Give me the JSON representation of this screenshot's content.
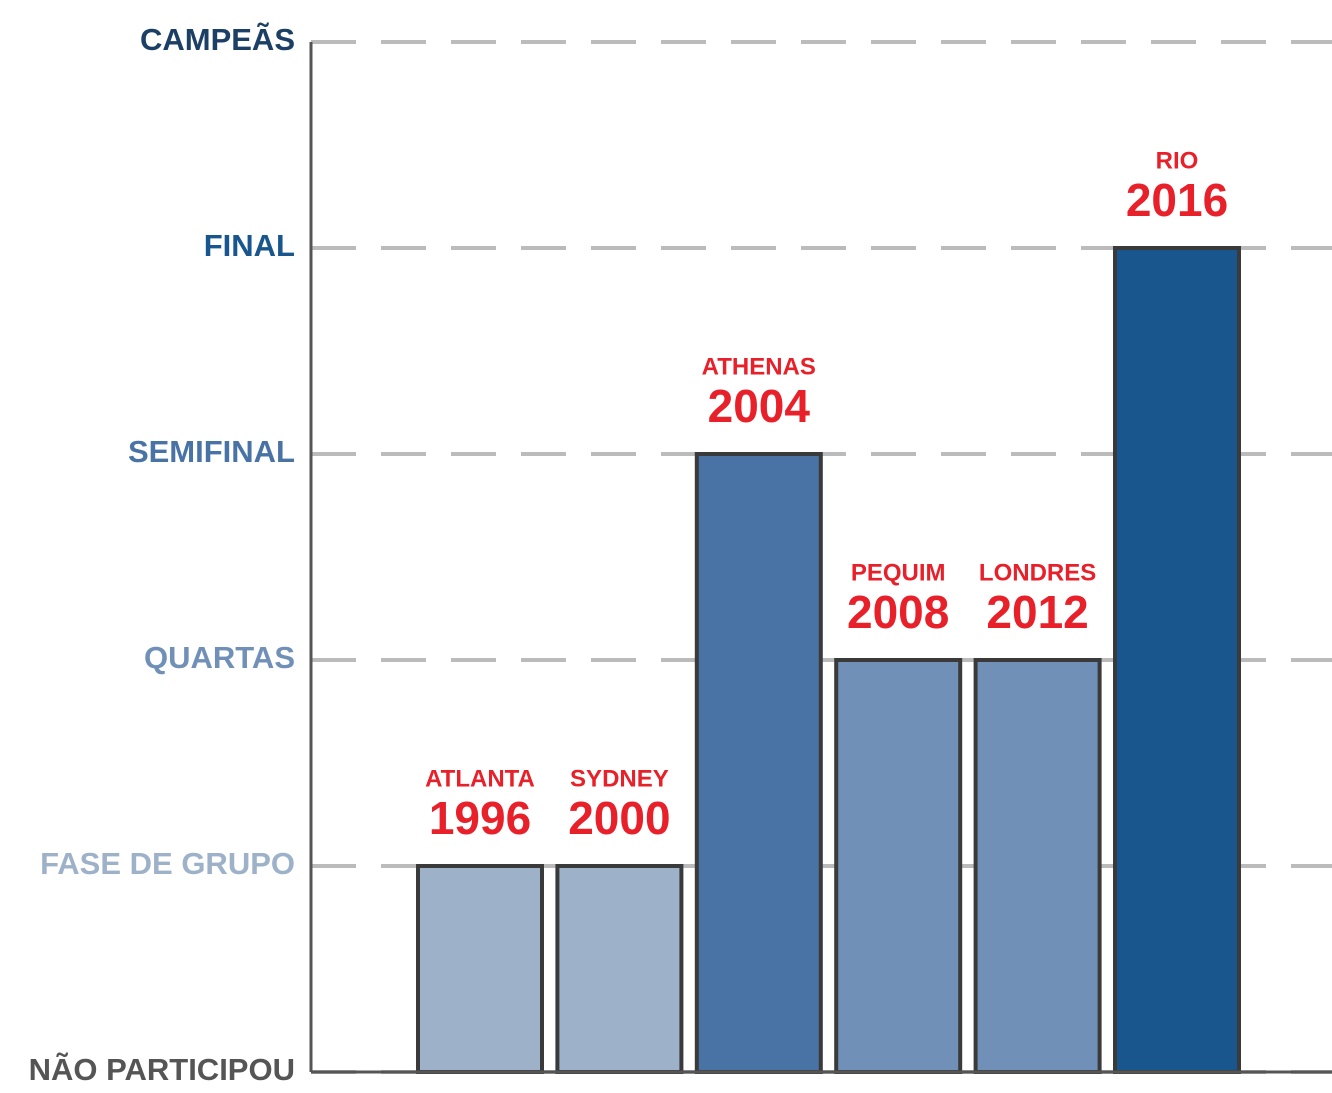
{
  "chart_data": {
    "type": "bar",
    "categories": [
      "1996",
      "2000",
      "2004",
      "2008",
      "2012",
      "2016"
    ],
    "category_names": [
      "ATLANTA",
      "SYDNEY",
      "ATHENAS",
      "PEQUIM",
      "LONDRES",
      "RIO"
    ],
    "values": [
      1,
      1,
      3,
      2,
      2,
      4
    ],
    "colors": [
      "#9db1c8",
      "#9db1c8",
      "#4a73a5",
      "#7090b8",
      "#7090b8",
      "#1a568e"
    ],
    "ylim": [
      0,
      5
    ],
    "yticks": [
      {
        "value": 0,
        "label": "NÃO PARTICIPOU"
      },
      {
        "value": 1,
        "label": "FASE DE GRUPO"
      },
      {
        "value": 2,
        "label": "QUARTAS"
      },
      {
        "value": 3,
        "label": "SEMIFINAL"
      },
      {
        "value": 4,
        "label": "FINAL"
      },
      {
        "value": 5,
        "label": "CAMPEÃS"
      }
    ],
    "ytick_colors": [
      "#555555",
      "#9db1c8",
      "#7090b8",
      "#4a73a5",
      "#1a568e",
      "#1c3f66"
    ],
    "label_color": "#e8202a",
    "grid": true
  }
}
